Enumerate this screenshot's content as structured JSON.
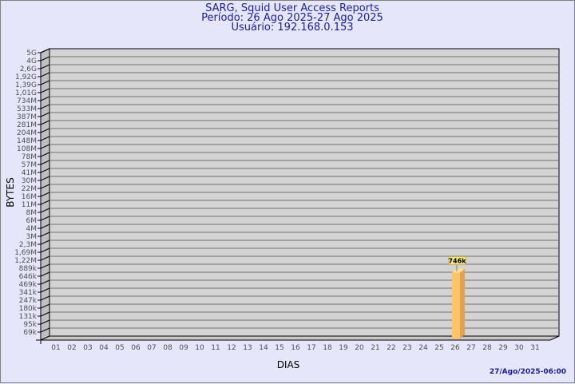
{
  "chart_data": {
    "type": "bar",
    "title": "SARG, Squid User Access Reports",
    "subtitle": [
      "Período: 26 Ago 2025-27 Ago 2025",
      "Usuário: 192.168.0.153"
    ],
    "xlabel": "DIAS",
    "ylabel": "BYTES",
    "yscale": "log",
    "y_ticks": [
      "5G",
      "4G",
      "2,6G",
      "1,92G",
      "1,39G",
      "1,01G",
      "734M",
      "533M",
      "387M",
      "281M",
      "204M",
      "148M",
      "108M",
      "78M",
      "57M",
      "41M",
      "30M",
      "22M",
      "16M",
      "11M",
      "8M",
      "6M",
      "4M",
      "3M",
      "2,3M",
      "1,69M",
      "1,22M",
      "889k",
      "646k",
      "469k",
      "341k",
      "247k",
      "180k",
      "131k",
      "95k",
      "69k"
    ],
    "categories": [
      "01",
      "02",
      "03",
      "04",
      "05",
      "06",
      "07",
      "08",
      "09",
      "10",
      "11",
      "12",
      "13",
      "14",
      "15",
      "16",
      "17",
      "18",
      "19",
      "20",
      "21",
      "22",
      "23",
      "24",
      "25",
      "26",
      "27",
      "28",
      "29",
      "30",
      "31"
    ],
    "bars": [
      {
        "category": "26",
        "value": 746000,
        "label": "746k"
      }
    ],
    "grid": true,
    "colors": {
      "bar": "#ffc46a",
      "bar_side": "#e0a44e",
      "plot": "#d3d3d3",
      "title": "#1c1c9c",
      "label_box": "#f7e68a"
    }
  },
  "footer": {
    "timestamp": "27/Ago/2025-06:00"
  }
}
